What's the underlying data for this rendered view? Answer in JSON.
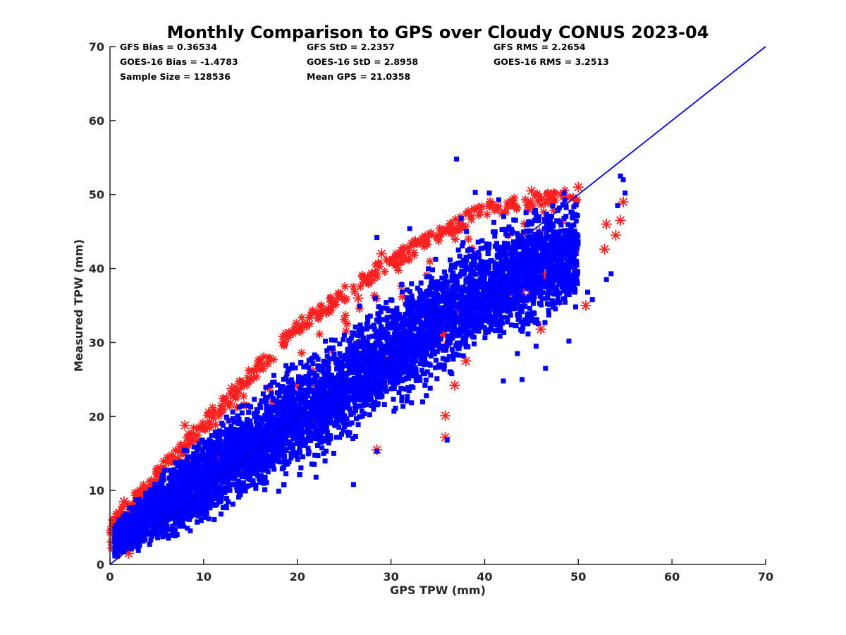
{
  "chart_data": {
    "type": "scatter",
    "title": "Monthly Comparison to GPS over Cloudy CONUS 2023-04",
    "xlabel": "GPS TPW (mm)",
    "ylabel": "Measured TPW (mm)",
    "xlim": [
      0,
      70
    ],
    "ylim": [
      0,
      70
    ],
    "xticks": [
      "0",
      "10",
      "20",
      "30",
      "40",
      "50",
      "60",
      "70"
    ],
    "yticks": [
      "0",
      "10",
      "20",
      "30",
      "40",
      "50",
      "60",
      "70"
    ],
    "grid": false,
    "stats": [
      "GFS Bias = 0.36534",
      "GOES-16 Bias = -1.4783",
      "Sample Size = 128536",
      "GFS StD = 2.2357",
      "GOES-16 StD = 2.8958",
      "Mean GPS = 21.0358",
      "GFS RMS = 2.2654",
      "GOES-16 RMS = 3.2513"
    ],
    "reference_line": {
      "x": [
        0,
        70
      ],
      "y": [
        0,
        70
      ],
      "color": "#0000d6"
    },
    "series": [
      {
        "marker": "asterisk",
        "color": "#ff2020",
        "density_band": [
          [
            0,
            2,
            6
          ],
          [
            10,
            10,
            20
          ],
          [
            20,
            17,
            33
          ],
          [
            30,
            25,
            42
          ],
          [
            40,
            33,
            49
          ],
          [
            50,
            40,
            51
          ]
        ],
        "outliers": [
          [
            18.5,
            30
          ],
          [
            13,
            23.8
          ],
          [
            29,
            42
          ],
          [
            28.5,
            15.5
          ],
          [
            35.8,
            17.2
          ],
          [
            35.8,
            20.1
          ],
          [
            36.8,
            24.2
          ],
          [
            38,
            27.5
          ],
          [
            50.8,
            35
          ],
          [
            52.8,
            42.6
          ],
          [
            45,
            50.5
          ],
          [
            50,
            51
          ],
          [
            48,
            35.6
          ],
          [
            46,
            31.8
          ],
          [
            54,
            44.5
          ],
          [
            54.5,
            46.5
          ],
          [
            54.8,
            49
          ],
          [
            53,
            46
          ],
          [
            1.5,
            8.5
          ],
          [
            2,
            1.5
          ],
          [
            1,
            7
          ],
          [
            8,
            18.8
          ],
          [
            15,
            25
          ],
          [
            26.5,
            36
          ],
          [
            27.5,
            38.8
          ],
          [
            33,
            43.5
          ]
        ]
      },
      {
        "marker": "square",
        "color": "#0000ff",
        "density_band": [
          [
            0.5,
            1,
            6
          ],
          [
            10,
            5,
            18
          ],
          [
            20,
            12,
            28
          ],
          [
            30,
            20,
            37
          ],
          [
            40,
            28,
            46
          ],
          [
            50,
            35,
            50
          ]
        ],
        "outliers": [
          [
            37,
            54.8
          ],
          [
            54.5,
            52.5
          ],
          [
            54.8,
            52
          ],
          [
            55,
            50.2
          ],
          [
            54.2,
            48.5
          ],
          [
            39,
            50.3
          ],
          [
            40.5,
            50.2
          ],
          [
            41.5,
            49.3
          ],
          [
            49,
            30.2
          ],
          [
            46.5,
            26.5
          ],
          [
            44,
            25
          ],
          [
            43.5,
            28.5
          ],
          [
            45.5,
            29.5
          ],
          [
            42,
            24.8
          ],
          [
            36,
            16.8
          ],
          [
            28.5,
            15.3
          ],
          [
            26,
            10.8
          ],
          [
            22,
            11.8
          ],
          [
            18.5,
            15
          ],
          [
            16,
            13.5
          ],
          [
            53.5,
            39.3
          ],
          [
            53,
            38.5
          ],
          [
            51.5,
            35.8
          ],
          [
            49.5,
            37.5
          ],
          [
            51,
            36.8
          ],
          [
            32,
            45.4
          ],
          [
            28.5,
            44.2
          ],
          [
            37.5,
            46.8
          ],
          [
            45.5,
            47.2
          ],
          [
            14,
            10
          ],
          [
            10.5,
            7.8
          ]
        ]
      }
    ]
  }
}
